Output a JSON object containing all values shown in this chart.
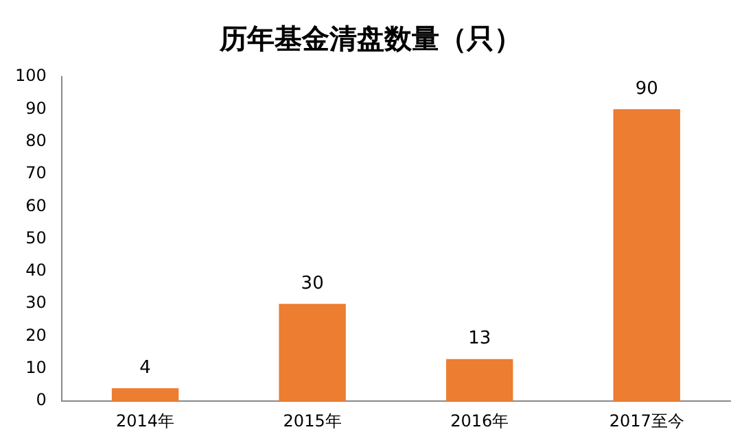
{
  "chart_data": {
    "type": "bar",
    "title": "历年基金清盘数量（只）",
    "categories": [
      "2014年",
      "2015年",
      "2016年",
      "2017至今"
    ],
    "values": [
      4,
      30,
      13,
      90
    ],
    "color": "#ed7d31",
    "ylim": [
      0,
      100
    ],
    "yticks": [
      0,
      10,
      20,
      30,
      40,
      50,
      60,
      70,
      80,
      90,
      100
    ],
    "grid": false,
    "legend": false,
    "data_labels": true
  }
}
